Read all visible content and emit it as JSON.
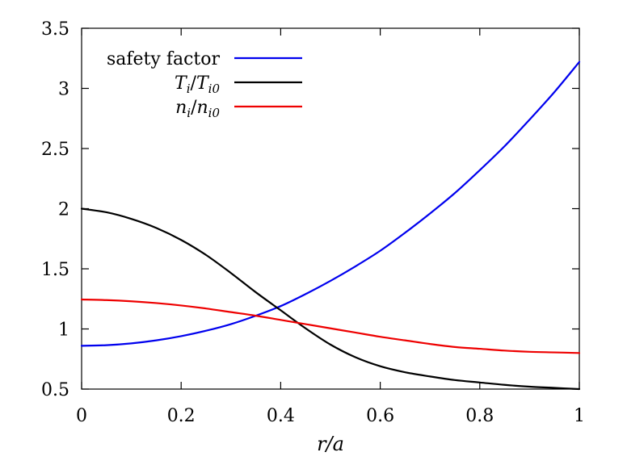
{
  "chart_data": {
    "type": "line",
    "title": "",
    "xlabel": "r/a",
    "ylabel": "",
    "xlim": [
      0,
      1
    ],
    "ylim": [
      0.5,
      3.5
    ],
    "grid": false,
    "legend_position": "top-left",
    "x_ticks": [
      0,
      0.2,
      0.4,
      0.6,
      0.8,
      1
    ],
    "x_tick_labels": [
      "0",
      "0.2",
      "0.4",
      "0.6",
      "0.8",
      "1"
    ],
    "y_ticks": [
      0.5,
      1,
      1.5,
      2,
      2.5,
      3,
      3.5
    ],
    "y_tick_labels": [
      "0.5",
      "1",
      "1.5",
      "2",
      "2.5",
      "3",
      "3.5"
    ],
    "x": [
      0,
      0.05,
      0.1,
      0.15,
      0.2,
      0.25,
      0.3,
      0.35,
      0.4,
      0.45,
      0.5,
      0.55,
      0.6,
      0.65,
      0.7,
      0.75,
      0.8,
      0.85,
      0.9,
      0.95,
      1.0
    ],
    "series": [
      {
        "name": "safety factor",
        "color": "#0000ee",
        "values": [
          0.86,
          0.865,
          0.88,
          0.905,
          0.94,
          0.985,
          1.04,
          1.11,
          1.19,
          1.29,
          1.4,
          1.52,
          1.65,
          1.8,
          1.96,
          2.13,
          2.32,
          2.52,
          2.74,
          2.97,
          3.22
        ]
      },
      {
        "name": "Ti/Ti0",
        "color": "#000000",
        "values": [
          2.0,
          1.97,
          1.915,
          1.84,
          1.74,
          1.615,
          1.465,
          1.305,
          1.155,
          1.005,
          0.87,
          0.765,
          0.69,
          0.64,
          0.605,
          0.575,
          0.555,
          0.535,
          0.52,
          0.51,
          0.5
        ]
      },
      {
        "name": "ni/ni0",
        "color": "#ee0000",
        "values": [
          1.245,
          1.24,
          1.23,
          1.215,
          1.195,
          1.17,
          1.14,
          1.11,
          1.075,
          1.04,
          1.005,
          0.97,
          0.935,
          0.905,
          0.875,
          0.85,
          0.835,
          0.82,
          0.81,
          0.805,
          0.8
        ]
      }
    ],
    "legend": {
      "entry0": "safety factor",
      "entry1_main": "T",
      "entry1_sub": "i",
      "entry1_slash": "/",
      "entry1_main2": "T",
      "entry1_sub2": "i0",
      "entry2_main": "n",
      "entry2_sub": "i",
      "entry2_slash": "/",
      "entry2_main2": "n",
      "entry2_sub2": "i0"
    }
  }
}
